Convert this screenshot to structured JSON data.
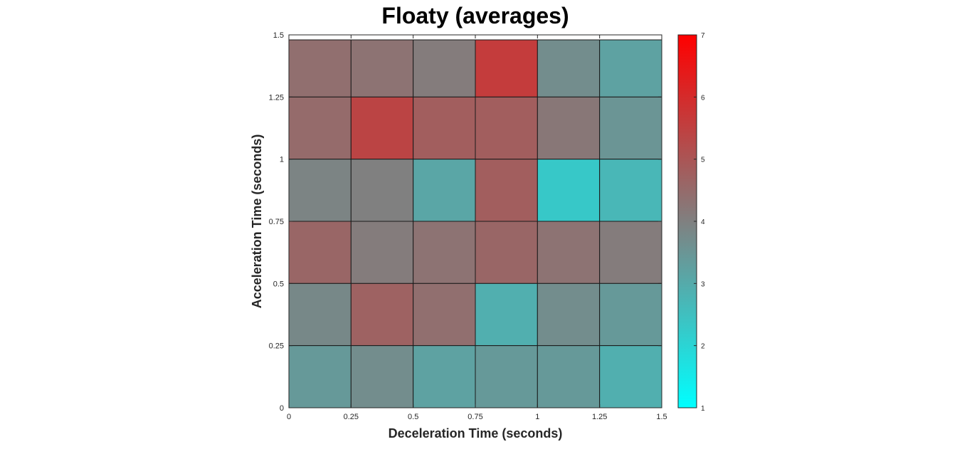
{
  "chart_data": {
    "type": "heatmap",
    "title": "Floaty (averages)",
    "xlabel": "Deceleration Time (seconds)",
    "ylabel": "Acceleration Time (seconds)",
    "x_edges": [
      0,
      0.25,
      0.5,
      0.75,
      1,
      1.25,
      1.5
    ],
    "y_edges": [
      0,
      0.25,
      0.5,
      0.75,
      1,
      1.25,
      1.5
    ],
    "x_tick_labels": [
      "0",
      "0.25",
      "0.5",
      "0.75",
      "1",
      "1.25",
      "1.5"
    ],
    "y_tick_labels": [
      "0",
      "0.25",
      "0.5",
      "0.75",
      "1",
      "1.25",
      "1.5"
    ],
    "xlim": [
      0,
      1.5
    ],
    "ylim": [
      0,
      1.5
    ],
    "grid": true,
    "rows_top_to_bottom_y": [
      "1.25-1.5",
      "1-1.25",
      "0.75-1",
      "0.5-0.75",
      "0.25-0.5",
      "0-0.25"
    ],
    "values": [
      [
        4.4,
        4.3,
        4.1,
        5.6,
        3.7,
        3.2
      ],
      [
        4.5,
        5.4,
        4.8,
        4.8,
        4.2,
        3.5
      ],
      [
        3.9,
        4.0,
        3.1,
        4.8,
        2.3,
        2.7
      ],
      [
        4.6,
        4.1,
        4.3,
        4.6,
        4.3,
        4.1
      ],
      [
        3.8,
        4.7,
        4.4,
        2.9,
        3.7,
        3.4
      ],
      [
        3.4,
        3.7,
        3.2,
        3.4,
        3.4,
        2.9
      ]
    ],
    "colorbar": {
      "min": 1,
      "max": 7,
      "tick_labels": [
        "1",
        "2",
        "3",
        "4",
        "5",
        "6",
        "7"
      ],
      "low_color": "#00ffff",
      "mid_color": "#808080",
      "high_color": "#ff0000",
      "mid_value": 4
    }
  }
}
